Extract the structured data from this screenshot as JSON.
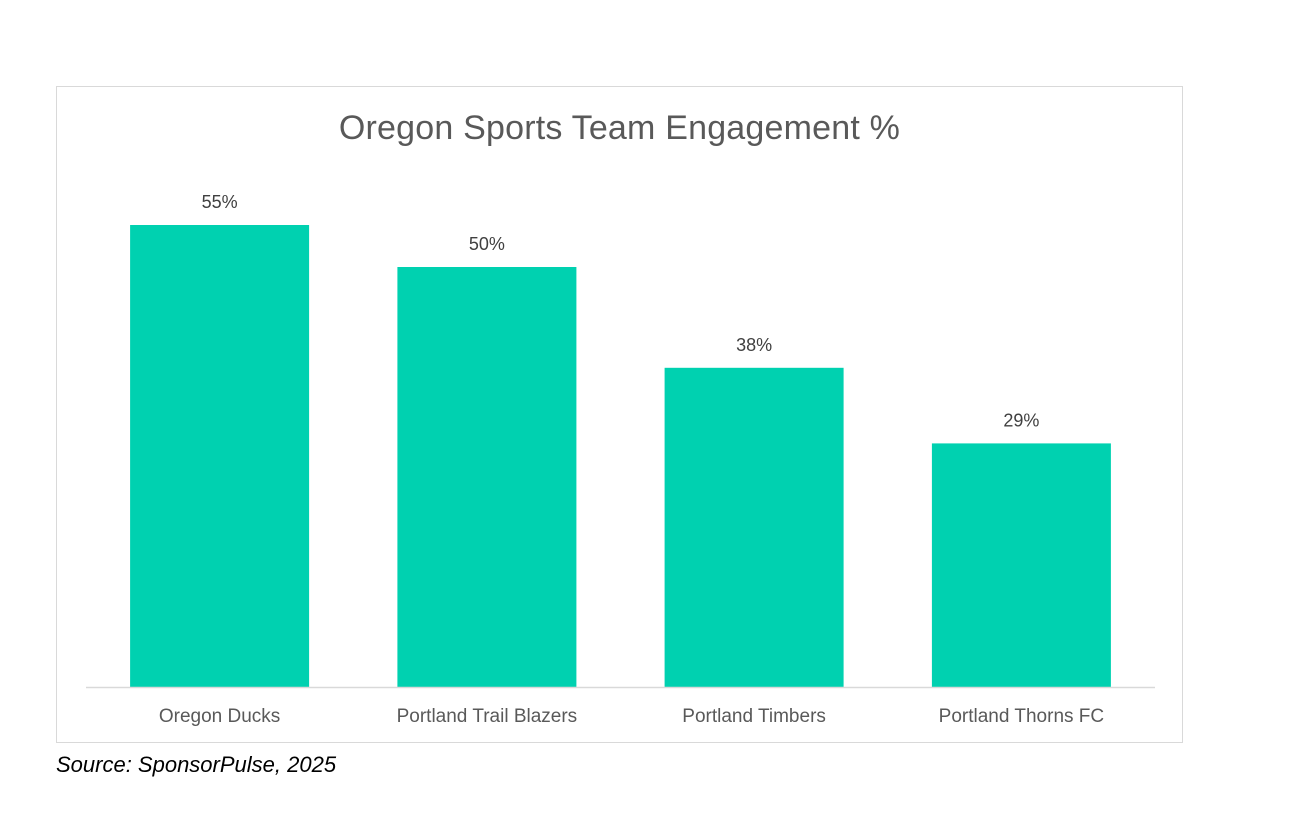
{
  "chart_data": {
    "type": "bar",
    "title": "Oregon Sports Team Engagement %",
    "categories": [
      "Oregon Ducks",
      "Portland Trail Blazers",
      "Portland Timbers",
      "Portland Thorns FC"
    ],
    "values": [
      55,
      50,
      38,
      29
    ],
    "data_labels": [
      "55%",
      "50%",
      "38%",
      "29%"
    ],
    "unit": "%",
    "ylim": [
      0,
      55
    ],
    "grid": false,
    "legend": "none",
    "colors": {
      "bar": "#00d1b0",
      "axis_line": "#d9d9d9",
      "label_text": "#404040",
      "tick_text": "#595959"
    }
  },
  "source": "Source: SponsorPulse, 2025"
}
